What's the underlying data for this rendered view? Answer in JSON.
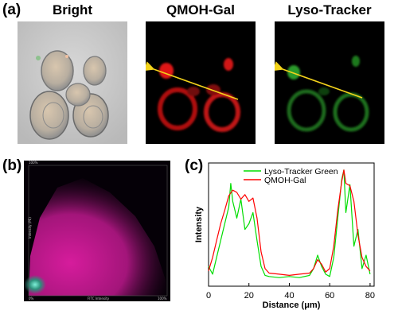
{
  "panel_a": {
    "label": "(a)",
    "titles": [
      "Bright",
      "QMOH-Gal",
      "Lyso-Tracker"
    ]
  },
  "panel_b": {
    "label": "(b)",
    "scatter_axis_label_x": "FITC Intensity",
    "scatter_axis_label_y": "Intensity (PE)",
    "scatter_corner_top": "100%",
    "scatter_corner_origin": "0%",
    "scatter_corner_right": "100%"
  },
  "panel_c": {
    "label": "(c)"
  },
  "colors": {
    "red_channel": "#ff1a1a",
    "green_channel": "#2fd12f",
    "arrow": "#f2d21b",
    "scatter_magenta": "#c2188f",
    "line_red": "#ff0000",
    "line_green": "#00dd00"
  },
  "chart_data": {
    "type": "line",
    "xlabel": "Distance (μm)",
    "ylabel": "Intensity",
    "xlim": [
      0,
      82
    ],
    "ylim": [
      0,
      1
    ],
    "x_ticks": [
      0,
      20,
      40,
      60,
      80
    ],
    "legend_position": "top",
    "series": [
      {
        "name": "Lyso-Tracker Green",
        "x": [
          0,
          2,
          4,
          6,
          8,
          10,
          11,
          12,
          14,
          16,
          18,
          20,
          22,
          24,
          26,
          28,
          30,
          35,
          40,
          45,
          50,
          52,
          54,
          56,
          58,
          60,
          62,
          64,
          66,
          67,
          68,
          70,
          72,
          74,
          76,
          78,
          80
        ],
        "y": [
          0.12,
          0.05,
          0.2,
          0.35,
          0.5,
          0.65,
          0.86,
          0.7,
          0.55,
          0.72,
          0.45,
          0.5,
          0.6,
          0.35,
          0.12,
          0.04,
          0.03,
          0.02,
          0.03,
          0.02,
          0.04,
          0.1,
          0.22,
          0.12,
          0.05,
          0.03,
          0.2,
          0.55,
          0.9,
          0.98,
          0.6,
          0.85,
          0.3,
          0.45,
          0.1,
          0.22,
          0.05
        ]
      },
      {
        "name": "QMOH-Gal",
        "x": [
          0,
          2,
          4,
          6,
          8,
          10,
          12,
          14,
          16,
          18,
          20,
          22,
          24,
          26,
          28,
          30,
          35,
          40,
          45,
          50,
          52,
          54,
          56,
          58,
          60,
          62,
          64,
          66,
          67,
          68,
          70,
          72,
          74,
          76,
          78,
          80
        ],
        "y": [
          0.08,
          0.2,
          0.35,
          0.5,
          0.62,
          0.75,
          0.8,
          0.78,
          0.72,
          0.76,
          0.7,
          0.73,
          0.55,
          0.25,
          0.1,
          0.06,
          0.05,
          0.04,
          0.05,
          0.06,
          0.1,
          0.18,
          0.14,
          0.07,
          0.1,
          0.3,
          0.62,
          0.88,
          0.98,
          0.86,
          0.84,
          0.7,
          0.4,
          0.2,
          0.12,
          0.08
        ]
      }
    ]
  }
}
